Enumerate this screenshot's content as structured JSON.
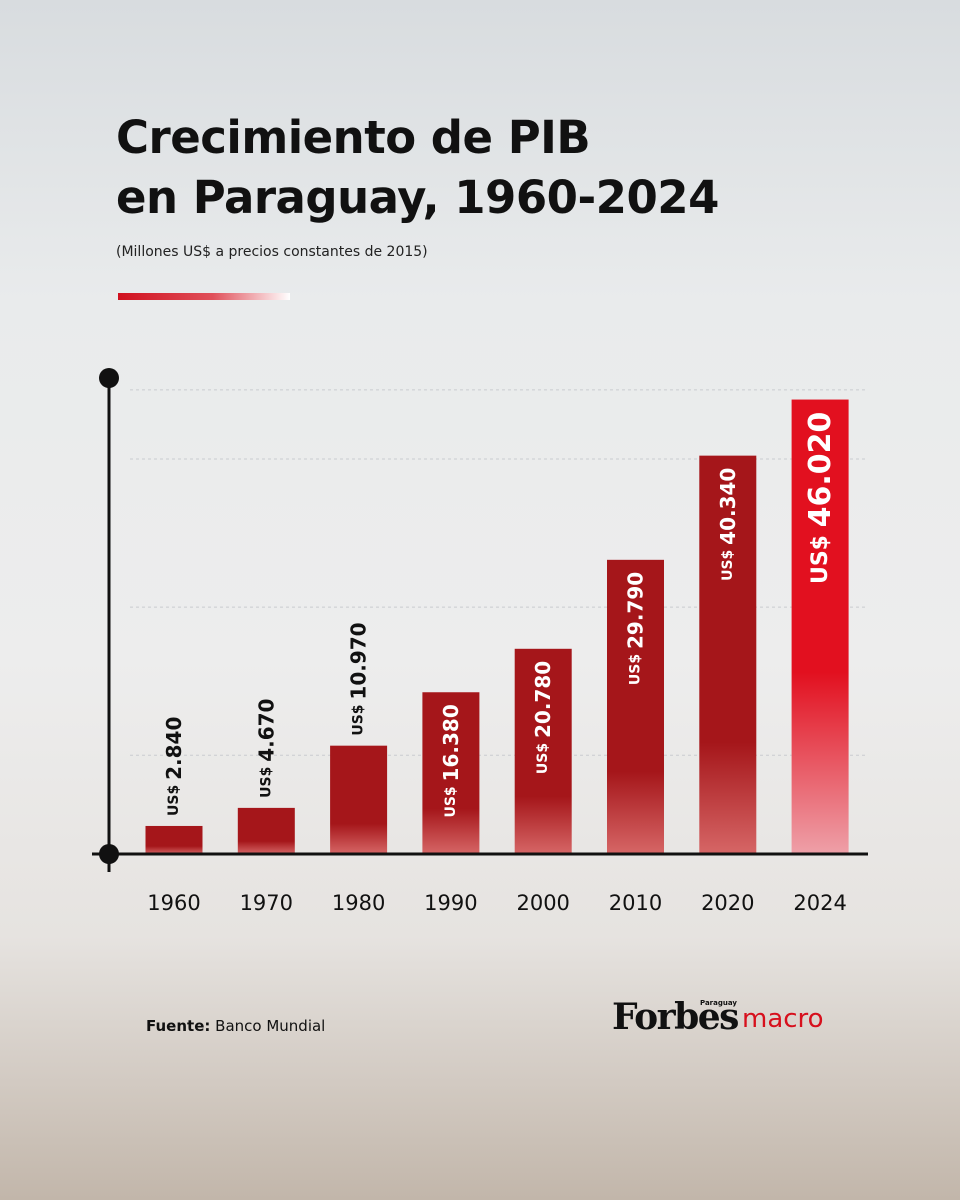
{
  "header": {
    "title_line1": "Crecimiento de PIB",
    "title_line2": "en Paraguay, 1960-2024",
    "subtitle": "(Millones US$ a precios constantes de 2015)"
  },
  "footer": {
    "source_label": "Fuente:",
    "source_value": "Banco Mundial",
    "brand_name": "Forbes",
    "brand_country": "Paraguay",
    "brand_product": "macro"
  },
  "colors": {
    "bar": "#a5161a",
    "bar_highlight": "#e2101f",
    "accent": "#d7101d",
    "axis": "#111111"
  },
  "chart_data": {
    "type": "bar",
    "title": "Crecimiento de PIB en Paraguay, 1960-2024",
    "subtitle": "(Millones US$ a precios constantes de 2015)",
    "categories": [
      "1960",
      "1970",
      "1980",
      "1990",
      "2000",
      "2010",
      "2020",
      "2024"
    ],
    "values": [
      2840,
      4670,
      10970,
      16380,
      20780,
      29790,
      40340,
      46020
    ],
    "value_labels": [
      "2.840",
      "4.670",
      "10.970",
      "16.380",
      "20.780",
      "29.790",
      "40.340",
      "46.020"
    ],
    "value_prefix": "US$",
    "highlight_category": "2024",
    "ylim": [
      0,
      48000
    ],
    "grid": true,
    "xlabel": "",
    "ylabel": ""
  }
}
